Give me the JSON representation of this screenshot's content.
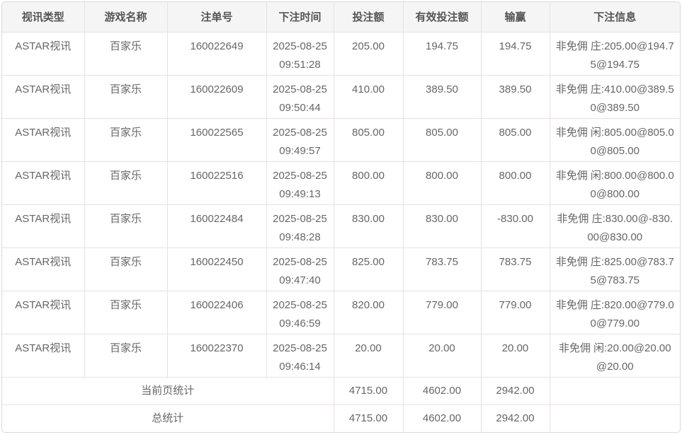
{
  "colors": {
    "outer_border": "#d8d8d8",
    "inner_border": "#e9e0e4",
    "header_bg": "#f5f5f5",
    "header_text": "#555555",
    "body_text": "#666666",
    "row_bg": "#ffffff"
  },
  "table": {
    "columns": [
      {
        "key": "video-type",
        "label": "视讯类型"
      },
      {
        "key": "game-name",
        "label": "游戏名称"
      },
      {
        "key": "bet-id",
        "label": "注单号"
      },
      {
        "key": "bet-time",
        "label": "下注时间"
      },
      {
        "key": "bet-amount",
        "label": "投注额"
      },
      {
        "key": "valid-amount",
        "label": "有效投注额"
      },
      {
        "key": "win-loss",
        "label": "输赢"
      },
      {
        "key": "bet-info",
        "label": "下注信息"
      }
    ],
    "rows": [
      [
        "ASTAR视讯",
        "百家乐",
        "160022649",
        "2025-08-25 09:51:28",
        "205.00",
        "194.75",
        "194.75",
        "非免佣 庄:205.00@194.75@194.75"
      ],
      [
        "ASTAR视讯",
        "百家乐",
        "160022609",
        "2025-08-25 09:50:44",
        "410.00",
        "389.50",
        "389.50",
        "非免佣 庄:410.00@389.50@389.50"
      ],
      [
        "ASTAR视讯",
        "百家乐",
        "160022565",
        "2025-08-25 09:49:57",
        "805.00",
        "805.00",
        "805.00",
        "非免佣 闲:805.00@805.00@805.00"
      ],
      [
        "ASTAR视讯",
        "百家乐",
        "160022516",
        "2025-08-25 09:49:13",
        "800.00",
        "800.00",
        "800.00",
        "非免佣 闲:800.00@800.00@800.00"
      ],
      [
        "ASTAR视讯",
        "百家乐",
        "160022484",
        "2025-08-25 09:48:28",
        "830.00",
        "830.00",
        "-830.00",
        "非免佣 庄:830.00@-830.00@830.00"
      ],
      [
        "ASTAR视讯",
        "百家乐",
        "160022450",
        "2025-08-25 09:47:40",
        "825.00",
        "783.75",
        "783.75",
        "非免佣 庄:825.00@783.75@783.75"
      ],
      [
        "ASTAR视讯",
        "百家乐",
        "160022406",
        "2025-08-25 09:46:59",
        "820.00",
        "779.00",
        "779.00",
        "非免佣 庄:820.00@779.00@779.00"
      ],
      [
        "ASTAR视讯",
        "百家乐",
        "160022370",
        "2025-08-25 09:46:14",
        "20.00",
        "20.00",
        "20.00",
        "非免佣 闲:20.00@20.00@20.00"
      ]
    ],
    "summary_rows": [
      {
        "name": "current-page-total",
        "label": "当前页统计",
        "bet_amount": "4715.00",
        "valid_amount": "4602.00",
        "win_loss": "2942.00",
        "bet_info": ""
      },
      {
        "name": "grand-total",
        "label": "总统计",
        "bet_amount": "4715.00",
        "valid_amount": "4602.00",
        "win_loss": "2942.00",
        "bet_info": ""
      }
    ]
  }
}
